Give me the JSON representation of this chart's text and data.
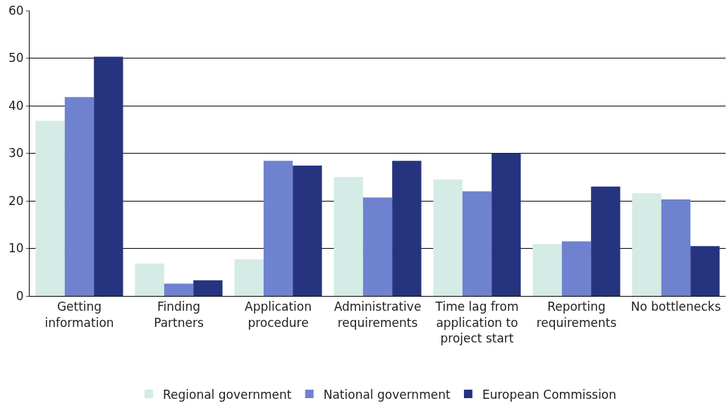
{
  "chart_data": {
    "type": "bar",
    "categories": [
      "Getting information",
      "Finding Partners",
      "Application procedure",
      "Administrative requirements",
      "Time lag from application to project start",
      "Reporting requirements",
      "No bottlenecks"
    ],
    "series": [
      {
        "name": "Regional government",
        "color": "#d4ebe6",
        "values": [
          36.8,
          6.8,
          7.7,
          25.0,
          24.5,
          10.9,
          21.6
        ]
      },
      {
        "name": "National government",
        "color": "#6f82d0",
        "values": [
          41.8,
          2.6,
          28.4,
          20.7,
          22.0,
          11.5,
          20.3
        ]
      },
      {
        "name": "European Commission",
        "color": "#26337f",
        "values": [
          50.3,
          3.3,
          27.4,
          28.4,
          30.0,
          23.0,
          10.5
        ]
      }
    ],
    "ylim": [
      0,
      60
    ],
    "yticks": [
      0,
      10,
      20,
      30,
      40,
      50,
      60
    ],
    "grid": "y",
    "legend": "bottom"
  }
}
